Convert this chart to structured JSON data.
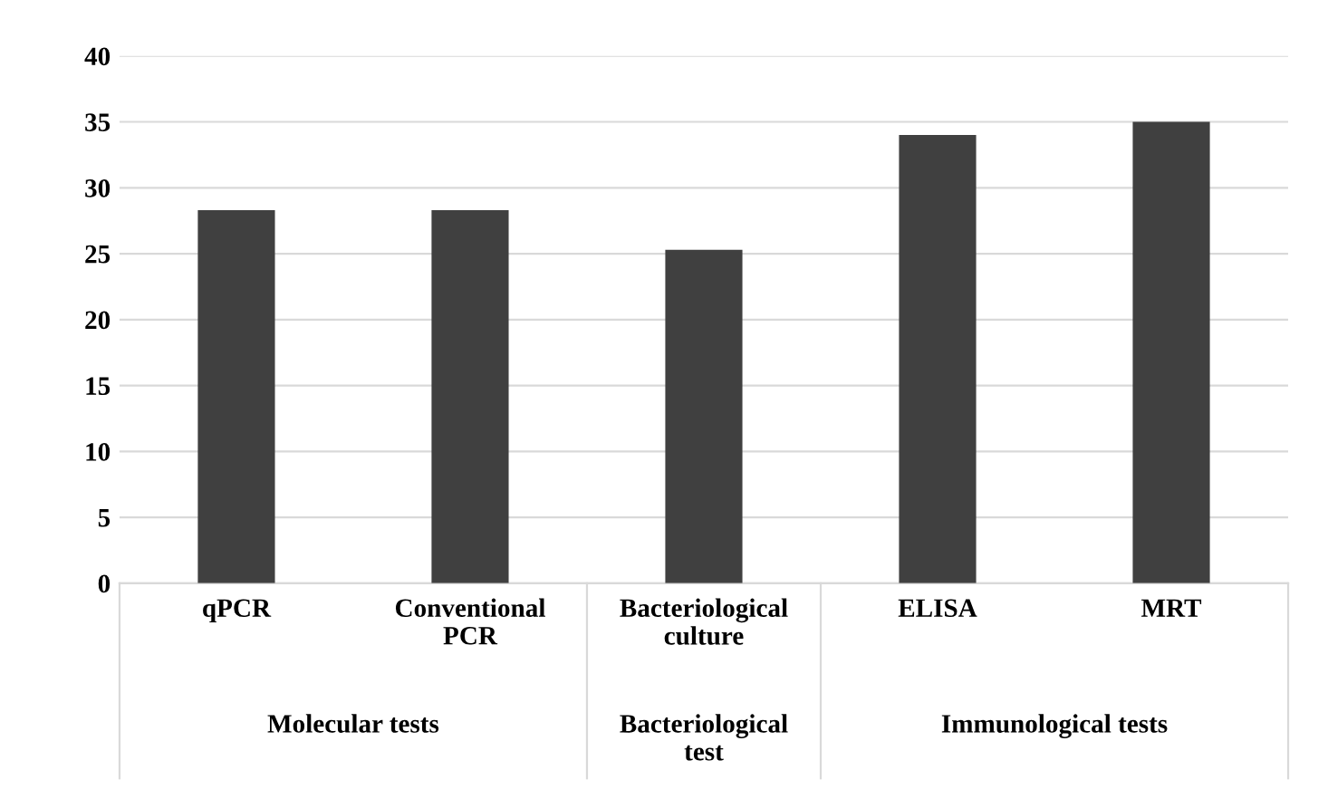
{
  "chart_data": {
    "type": "bar",
    "categories": [
      "qPCR",
      "Conventional\nPCR",
      "Bacteriological\nculture",
      "ELISA",
      "MRT"
    ],
    "values": [
      28.3,
      28.3,
      25.3,
      34,
      35
    ],
    "color": "#404040",
    "ylim": [
      0,
      40
    ],
    "yticks": [
      0,
      5,
      10,
      15,
      20,
      25,
      30,
      35,
      40
    ],
    "grid": "y",
    "annotations": [
      "Molecular tests",
      "Bacteriological\ntest",
      "Immunological tests"
    ]
  }
}
